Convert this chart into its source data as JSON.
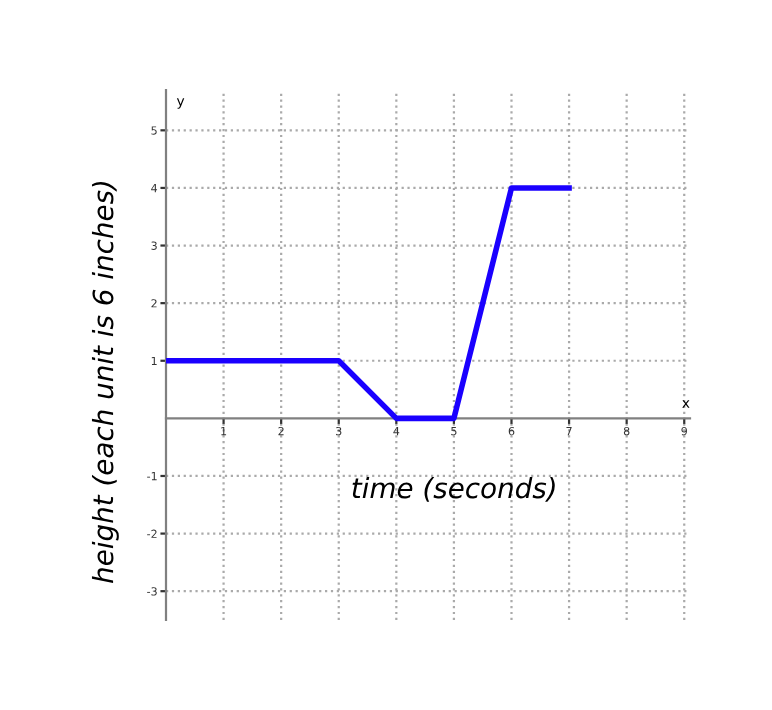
{
  "chart_data": {
    "type": "line",
    "xlabel": "time (seconds)",
    "ylabel": "height (each unit is 6 inches)",
    "x": [
      0,
      3,
      4,
      5,
      6,
      7
    ],
    "series": [
      {
        "color": "#1a00ff",
        "values": [
          1,
          1,
          0,
          0,
          4,
          4
        ]
      }
    ],
    "xlim": [
      0,
      9.1
    ],
    "ylim": [
      -3.5,
      5.7
    ],
    "xticks": [
      1,
      2,
      3,
      4,
      5,
      6,
      7,
      8,
      9
    ],
    "yticks": [
      -3,
      -2,
      -1,
      1,
      2,
      3,
      4,
      5
    ],
    "grid": true,
    "marker": "none",
    "line_style": "solid",
    "legend": false,
    "annotations": [
      "x",
      "y"
    ]
  }
}
